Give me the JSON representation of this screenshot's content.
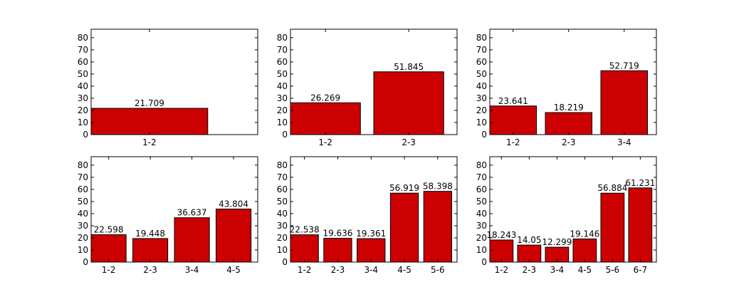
{
  "figure": {
    "background": "#ffffff",
    "bar_color": "#cc0000",
    "edge_color": "#000000"
  },
  "chart_data": [
    {
      "type": "bar",
      "categories": [
        "1-2"
      ],
      "values": [
        21.709
      ],
      "value_labels": [
        "21.709"
      ],
      "ylim": [
        0,
        87
      ],
      "yticks": [
        0,
        10,
        20,
        30,
        40,
        50,
        60,
        70,
        80
      ],
      "title": "",
      "xlabel": "",
      "ylabel": ""
    },
    {
      "type": "bar",
      "categories": [
        "1-2",
        "2-3"
      ],
      "values": [
        26.269,
        51.845
      ],
      "value_labels": [
        "26.269",
        "51.845"
      ],
      "ylim": [
        0,
        87
      ],
      "yticks": [
        0,
        10,
        20,
        30,
        40,
        50,
        60,
        70,
        80
      ],
      "title": "",
      "xlabel": "",
      "ylabel": ""
    },
    {
      "type": "bar",
      "categories": [
        "1-2",
        "2-3",
        "3-4"
      ],
      "values": [
        23.641,
        18.219,
        52.719
      ],
      "value_labels": [
        "23.641",
        "18.219",
        "52.719"
      ],
      "ylim": [
        0,
        87
      ],
      "yticks": [
        0,
        10,
        20,
        30,
        40,
        50,
        60,
        70,
        80
      ],
      "title": "",
      "xlabel": "",
      "ylabel": ""
    },
    {
      "type": "bar",
      "categories": [
        "1-2",
        "2-3",
        "3-4",
        "4-5"
      ],
      "values": [
        22.598,
        19.448,
        36.637,
        43.804
      ],
      "value_labels": [
        "22.598",
        "19.448",
        "36.637",
        "43.804"
      ],
      "ylim": [
        0,
        87
      ],
      "yticks": [
        0,
        10,
        20,
        30,
        40,
        50,
        60,
        70,
        80
      ],
      "title": "",
      "xlabel": "",
      "ylabel": ""
    },
    {
      "type": "bar",
      "categories": [
        "1-2",
        "2-3",
        "3-4",
        "4-5",
        "5-6"
      ],
      "values": [
        22.538,
        19.636,
        19.361,
        56.919,
        58.398
      ],
      "value_labels": [
        "22.538",
        "19.636",
        "19.361",
        "56.919",
        "58.398"
      ],
      "ylim": [
        0,
        87
      ],
      "yticks": [
        0,
        10,
        20,
        30,
        40,
        50,
        60,
        70,
        80
      ],
      "title": "",
      "xlabel": "",
      "ylabel": ""
    },
    {
      "type": "bar",
      "categories": [
        "1-2",
        "2-3",
        "3-4",
        "4-5",
        "5-6",
        "6-7"
      ],
      "values": [
        18.243,
        14.05,
        12.299,
        19.146,
        56.884,
        61.231
      ],
      "value_labels": [
        "18.243",
        "14.05",
        "12.299",
        "19.146",
        "56.884",
        "61.231"
      ],
      "ylim": [
        0,
        87
      ],
      "yticks": [
        0,
        10,
        20,
        30,
        40,
        50,
        60,
        70,
        80
      ],
      "title": "",
      "xlabel": "",
      "ylabel": ""
    }
  ]
}
